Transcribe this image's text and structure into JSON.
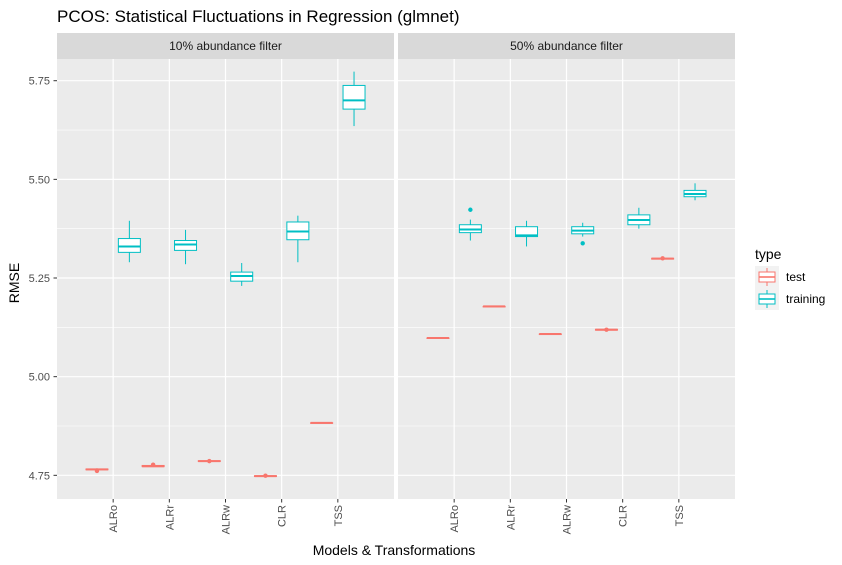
{
  "chart_data": {
    "type": "boxplot",
    "title": "PCOS: Statistical Fluctuations in Regression (glmnet)",
    "xlabel": "Models & Transformations",
    "ylabel": "RMSE",
    "ylim": [
      4.69,
      5.805
    ],
    "yticks": [
      4.75,
      5.0,
      5.25,
      5.5,
      5.75
    ],
    "ytick_labels": [
      "4.75",
      "5.00",
      "5.25",
      "5.50",
      "5.75"
    ],
    "categories": [
      "ALRo",
      "ALRr",
      "ALRw",
      "CLR",
      "TSS"
    ],
    "legend": {
      "title": "type",
      "position": "right",
      "items": [
        {
          "name": "test",
          "color": "#F8766D"
        },
        {
          "name": "training",
          "color": "#00BFC4"
        }
      ]
    },
    "panels": [
      {
        "label": "10% abundance filter",
        "boxes": [
          {
            "category": "ALRo",
            "type": "test",
            "min": 4.762,
            "q1": 4.764,
            "median": 4.765,
            "q3": 4.766,
            "max": 4.768,
            "outliers": [
              4.761
            ]
          },
          {
            "category": "ALRo",
            "type": "training",
            "min": 5.29,
            "q1": 5.315,
            "median": 5.33,
            "q3": 5.35,
            "max": 5.395,
            "outliers": []
          },
          {
            "category": "ALRr",
            "type": "test",
            "min": 4.771,
            "q1": 4.772,
            "median": 4.773,
            "q3": 4.775,
            "max": 4.777,
            "outliers": [
              4.777
            ]
          },
          {
            "category": "ALRr",
            "type": "training",
            "min": 5.285,
            "q1": 5.32,
            "median": 5.335,
            "q3": 5.345,
            "max": 5.372,
            "outliers": []
          },
          {
            "category": "ALRw",
            "type": "test",
            "min": 4.784,
            "q1": 4.785,
            "median": 4.786,
            "q3": 4.787,
            "max": 4.788,
            "outliers": [
              4.786
            ]
          },
          {
            "category": "ALRw",
            "type": "training",
            "min": 5.23,
            "q1": 5.242,
            "median": 5.255,
            "q3": 5.265,
            "max": 5.288,
            "outliers": []
          },
          {
            "category": "CLR",
            "type": "test",
            "min": 4.746,
            "q1": 4.747,
            "median": 4.748,
            "q3": 4.749,
            "max": 4.75,
            "outliers": [
              4.749
            ]
          },
          {
            "category": "CLR",
            "type": "training",
            "min": 5.29,
            "q1": 5.347,
            "median": 5.368,
            "q3": 5.392,
            "max": 5.408,
            "outliers": []
          },
          {
            "category": "TSS",
            "type": "test",
            "min": 4.882,
            "q1": 4.882,
            "median": 4.883,
            "q3": 4.883,
            "max": 4.884,
            "outliers": []
          },
          {
            "category": "TSS",
            "type": "training",
            "min": 5.635,
            "q1": 5.678,
            "median": 5.7,
            "q3": 5.738,
            "max": 5.773,
            "outliers": []
          }
        ]
      },
      {
        "label": "50% abundance filter",
        "boxes": [
          {
            "category": "ALRo",
            "type": "test",
            "min": 5.097,
            "q1": 5.097,
            "median": 5.098,
            "q3": 5.098,
            "max": 5.099,
            "outliers": []
          },
          {
            "category": "ALRo",
            "type": "training",
            "min": 5.345,
            "q1": 5.365,
            "median": 5.373,
            "q3": 5.385,
            "max": 5.398,
            "outliers": [
              5.423
            ]
          },
          {
            "category": "ALRr",
            "type": "test",
            "min": 5.177,
            "q1": 5.177,
            "median": 5.178,
            "q3": 5.178,
            "max": 5.179,
            "outliers": []
          },
          {
            "category": "ALRr",
            "type": "training",
            "min": 5.33,
            "q1": 5.355,
            "median": 5.358,
            "q3": 5.38,
            "max": 5.395,
            "outliers": []
          },
          {
            "category": "ALRw",
            "type": "test",
            "min": 5.107,
            "q1": 5.107,
            "median": 5.108,
            "q3": 5.108,
            "max": 5.109,
            "outliers": []
          },
          {
            "category": "ALRw",
            "type": "training",
            "min": 5.355,
            "q1": 5.362,
            "median": 5.37,
            "q3": 5.38,
            "max": 5.39,
            "outliers": [
              5.338
            ]
          },
          {
            "category": "CLR",
            "type": "test",
            "min": 5.117,
            "q1": 5.118,
            "median": 5.119,
            "q3": 5.12,
            "max": 5.121,
            "outliers": [
              5.119
            ]
          },
          {
            "category": "CLR",
            "type": "training",
            "min": 5.375,
            "q1": 5.385,
            "median": 5.397,
            "q3": 5.41,
            "max": 5.428,
            "outliers": []
          },
          {
            "category": "TSS",
            "type": "test",
            "min": 5.298,
            "q1": 5.298,
            "median": 5.299,
            "q3": 5.3,
            "max": 5.301,
            "outliers": [
              5.3
            ]
          },
          {
            "category": "TSS",
            "type": "training",
            "min": 5.447,
            "q1": 5.456,
            "median": 5.463,
            "q3": 5.472,
            "max": 5.49,
            "outliers": []
          }
        ]
      }
    ]
  }
}
